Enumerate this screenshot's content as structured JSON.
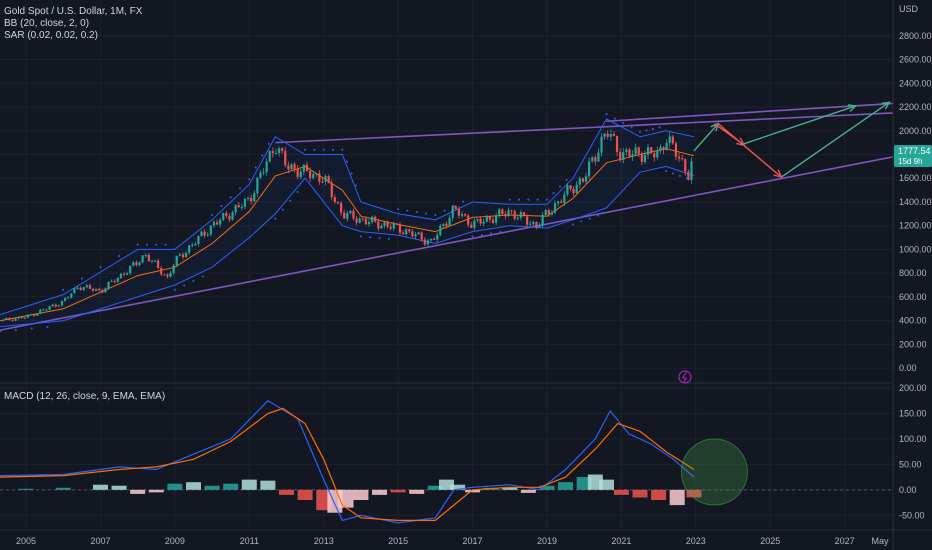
{
  "header": {
    "symbol_line": "Gold Spot / U.S. Dollar, 1M, FX",
    "bb_line": "BB (20, close, 2, 0)",
    "sar_line": "SAR (0.02, 0.02, 0.2)"
  },
  "price_axis": {
    "unit": "USD",
    "ticks": [
      "2800.00",
      "2600.00",
      "2400.00",
      "2200.00",
      "2000.00",
      "1800.00",
      "1600.00",
      "1400.00",
      "1200.00",
      "1000.00",
      "800.00",
      "600.00",
      "400.00",
      "200.00",
      "0.00"
    ],
    "current_price": "1777.54",
    "countdown": "15d 9h"
  },
  "macd_panel": {
    "title": "MACD (12, 26, close, 9, EMA, EMA)",
    "ticks": [
      "200.00",
      "150.00",
      "100.00",
      "50.00",
      "0.00",
      "-50.00"
    ]
  },
  "time_axis": {
    "ticks": [
      "2005",
      "2007",
      "2009",
      "2011",
      "2013",
      "2015",
      "2017",
      "2019",
      "2021",
      "2023",
      "2025",
      "2027",
      "May"
    ]
  },
  "colors": {
    "background": "#131722",
    "up_candle": "#26a69a",
    "down_candle": "#ef5350",
    "bb_band": "#2962ff",
    "bb_basis": "#ff6d00",
    "sar": "#2962ff",
    "trendline": "#7e57c2",
    "macd_line": "#2962ff",
    "signal_line": "#ff6d00",
    "projection_up": "#4caf8f",
    "projection_down": "#ef5350",
    "price_tag": "#26a69a"
  },
  "chart_data": [
    {
      "type": "line",
      "title": "Gold Spot / U.S. Dollar, 1M, FX",
      "xlim": [
        2004.3,
        2028.3
      ],
      "ylim": [
        -100,
        2950
      ],
      "series": [
        {
          "name": "Price",
          "x": [
            2004.3,
            2005,
            2006,
            2006.4,
            2007,
            2008,
            2008.2,
            2008.8,
            2009,
            2010,
            2011,
            2011.7,
            2012,
            2012.5,
            2013,
            2013.5,
            2014,
            2015,
            2015.9,
            2016.5,
            2017,
            2018,
            2018.7,
            2019,
            2019.6,
            2020,
            2020.6,
            2021,
            2021.5,
            2022,
            2022.2,
            2022.8,
            2022.95
          ],
          "values": [
            400,
            430,
            560,
            690,
            650,
            890,
            960,
            760,
            900,
            1200,
            1420,
            1890,
            1700,
            1650,
            1600,
            1300,
            1250,
            1180,
            1060,
            1340,
            1210,
            1320,
            1200,
            1300,
            1500,
            1600,
            2000,
            1800,
            1810,
            1800,
            1950,
            1640,
            1777.54
          ]
        },
        {
          "name": "BB Upper",
          "x": [
            2004.3,
            2006,
            2008,
            2009,
            2010,
            2011,
            2011.7,
            2012.5,
            2013.5,
            2014,
            2015,
            2016,
            2017,
            2018,
            2019,
            2019.7,
            2020.6,
            2021.5,
            2022.2,
            2022.95
          ],
          "values": [
            450,
            620,
            1000,
            1000,
            1250,
            1550,
            1950,
            1800,
            1800,
            1400,
            1300,
            1250,
            1400,
            1380,
            1380,
            1600,
            2100,
            1950,
            2000,
            1950
          ]
        },
        {
          "name": "BB Lower",
          "x": [
            2004.3,
            2006,
            2008,
            2009,
            2010,
            2011,
            2011.7,
            2012.5,
            2013.5,
            2014,
            2015,
            2016,
            2017,
            2018,
            2019,
            2019.7,
            2020.6,
            2021.5,
            2022.2,
            2022.95
          ],
          "values": [
            350,
            400,
            600,
            700,
            850,
            1100,
            1300,
            1600,
            1200,
            1150,
            1120,
            1050,
            1150,
            1200,
            1180,
            1250,
            1350,
            1650,
            1700,
            1620
          ]
        },
        {
          "name": "BB Basis",
          "x": [
            2004.3,
            2006,
            2008,
            2009,
            2010,
            2011,
            2011.7,
            2012.5,
            2013.5,
            2014,
            2015,
            2016,
            2017,
            2018,
            2019,
            2019.7,
            2020.6,
            2021.5,
            2022.2,
            2022.95
          ],
          "values": [
            400,
            500,
            780,
            850,
            1050,
            1320,
            1620,
            1700,
            1500,
            1280,
            1210,
            1150,
            1270,
            1290,
            1280,
            1430,
            1730,
            1800,
            1850,
            1790
          ]
        }
      ],
      "trendlines": [
        {
          "x": [
            2004.3,
            2028.3
          ],
          "values": [
            320,
            1780
          ]
        },
        {
          "x": [
            2011.7,
            2028.3
          ],
          "values": [
            1900,
            2150
          ]
        },
        {
          "x": [
            2020.6,
            2028.3
          ],
          "values": [
            2080,
            2230
          ]
        }
      ],
      "projections": [
        {
          "direction": "up",
          "x": [
            2022.95,
            2023.6
          ],
          "values": [
            1830,
            2060
          ]
        },
        {
          "direction": "down",
          "x": [
            2023.5,
            2024.3
          ],
          "values": [
            2060,
            1880
          ]
        },
        {
          "direction": "up",
          "x": [
            2024.2,
            2027.3
          ],
          "values": [
            1880,
            2210
          ]
        },
        {
          "direction": "down",
          "x": [
            2023.6,
            2025.3
          ],
          "values": [
            2060,
            1610
          ]
        },
        {
          "direction": "up",
          "x": [
            2025.3,
            2028.2
          ],
          "values": [
            1610,
            2240
          ]
        }
      ]
    },
    {
      "type": "bar",
      "title": "MACD (12, 26, close, 9, EMA, EMA)",
      "xlim": [
        2004.3,
        2028.3
      ],
      "ylim": [
        -75,
        200
      ],
      "series": [
        {
          "name": "MACD",
          "x": [
            2004.3,
            2006,
            2007.5,
            2008.5,
            2009.5,
            2010.5,
            2011.5,
            2012.3,
            2013,
            2013.5,
            2014,
            2015,
            2016,
            2016.5,
            2017,
            2018,
            2018.8,
            2019.5,
            2020.3,
            2020.7,
            2021.2,
            2021.8,
            2022.4,
            2022.95
          ],
          "values": [
            28,
            30,
            45,
            40,
            70,
            100,
            175,
            140,
            20,
            -60,
            -50,
            -65,
            -55,
            0,
            5,
            10,
            0,
            40,
            100,
            155,
            110,
            90,
            60,
            25
          ]
        },
        {
          "name": "Signal",
          "x": [
            2004.3,
            2006,
            2007.5,
            2008.5,
            2009.5,
            2010.5,
            2011.5,
            2011.9,
            2012.5,
            2013,
            2013.5,
            2014,
            2015,
            2016,
            2016.5,
            2017,
            2018,
            2018.8,
            2019.5,
            2020.3,
            2020.9,
            2021.5,
            2022.2,
            2022.95
          ],
          "values": [
            25,
            28,
            40,
            45,
            60,
            95,
            150,
            160,
            130,
            60,
            -30,
            -55,
            -60,
            -60,
            -30,
            0,
            5,
            5,
            25,
            80,
            130,
            115,
            75,
            40
          ]
        }
      ],
      "histogram": {
        "x": [
          2005,
          2006,
          2007,
          2007.5,
          2008,
          2008.5,
          2009,
          2009.5,
          2010,
          2010.5,
          2011,
          2011.5,
          2012,
          2012.5,
          2013,
          2013.3,
          2013.6,
          2014,
          2014.5,
          2015,
          2015.5,
          2016,
          2016.3,
          2016.6,
          2017,
          2017.5,
          2018,
          2018.5,
          2019,
          2019.5,
          2020,
          2020.3,
          2020.6,
          2021,
          2021.5,
          2022,
          2022.5,
          2022.95
        ],
        "values": [
          2,
          4,
          10,
          8,
          -8,
          -5,
          12,
          15,
          8,
          12,
          20,
          18,
          -10,
          -20,
          -40,
          -45,
          -35,
          -20,
          -10,
          -5,
          -8,
          8,
          20,
          10,
          -5,
          4,
          5,
          -6,
          8,
          15,
          25,
          30,
          20,
          -10,
          -15,
          -20,
          -30,
          -15
        ]
      },
      "annotation": {
        "label": "highlight-circle",
        "x": 2023.5,
        "y": 35
      }
    }
  ]
}
